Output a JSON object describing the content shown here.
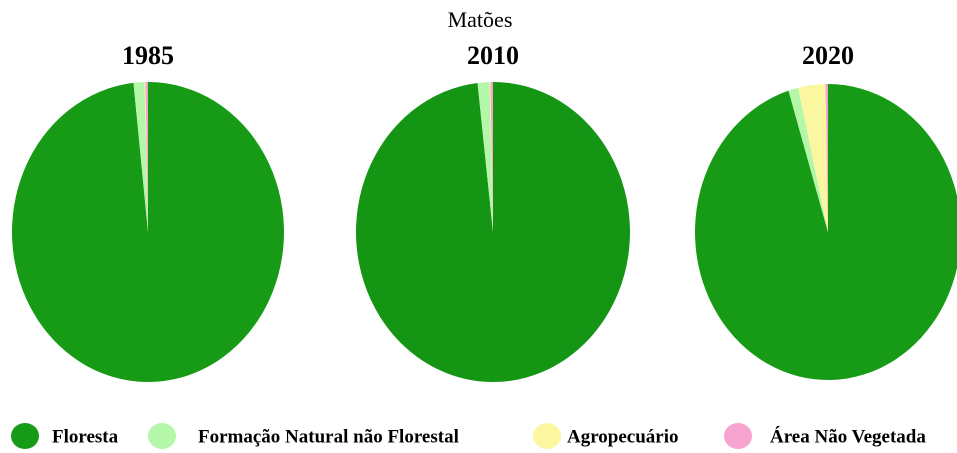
{
  "header": "Matões",
  "chart_data": [
    {
      "type": "pie",
      "title": "1985",
      "categories": [
        "Floresta",
        "Formação Natural não Florestal",
        "Agropecuário",
        "Área Não Vegetada"
      ],
      "values": [
        98.3,
        1.3,
        0.1,
        0.3
      ],
      "colors": [
        "#179b17",
        "#b5f7a8",
        "#fbf7a0",
        "#f7a3d0"
      ]
    },
    {
      "type": "pie",
      "title": "2010",
      "categories": [
        "Floresta",
        "Formação Natural não Florestal",
        "Agropecuário",
        "Área Não Vegetada"
      ],
      "values": [
        98.2,
        1.4,
        0.1,
        0.3
      ],
      "colors": [
        "#149514",
        "#b5f7a8",
        "#fbf7a0",
        "#f7a3d0"
      ]
    },
    {
      "type": "pie",
      "title": "2020",
      "categories": [
        "Floresta",
        "Formação Natural não Florestal",
        "Agropecuário",
        "Área Não Vegetada"
      ],
      "values": [
        95.2,
        1.2,
        3.3,
        0.3
      ],
      "colors": [
        "#179b17",
        "#b5f7a8",
        "#fbf7a0",
        "#f7a3d0"
      ]
    }
  ]
}
